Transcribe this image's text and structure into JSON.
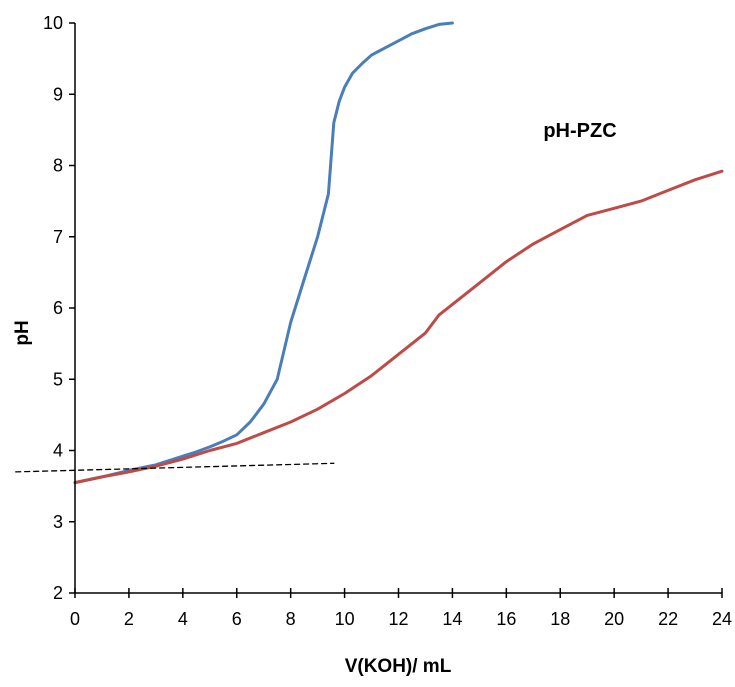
{
  "chart_data": {
    "type": "line",
    "title": "",
    "xlabel": "V(KOH)/ mL",
    "ylabel": "pH",
    "xlim": [
      0,
      24
    ],
    "ylim": [
      2,
      10
    ],
    "xticks": [
      0,
      2,
      4,
      6,
      8,
      10,
      12,
      14,
      16,
      18,
      20,
      22,
      24
    ],
    "yticks": [
      2,
      3,
      4,
      5,
      6,
      7,
      8,
      9,
      10
    ],
    "grid": false,
    "legend": "none",
    "annotation": "pH-PZC",
    "series": [
      {
        "color": "#4a7ebb",
        "x": [
          0,
          1,
          2,
          3,
          4,
          4.5,
          5,
          5.5,
          6,
          6.5,
          7,
          7.5,
          8,
          8.5,
          9,
          9.4,
          9.6,
          9.8,
          10,
          10.3,
          10.7,
          11,
          11.5,
          12,
          12.5,
          13,
          13.5,
          14
        ],
        "y": [
          3.55,
          3.63,
          3.72,
          3.8,
          3.92,
          3.98,
          4.05,
          4.13,
          4.22,
          4.4,
          4.65,
          5.0,
          5.8,
          6.4,
          7.0,
          7.6,
          8.6,
          8.9,
          9.1,
          9.3,
          9.45,
          9.55,
          9.65,
          9.75,
          9.85,
          9.92,
          9.98,
          10.0
        ]
      },
      {
        "color": "#be4b48",
        "x": [
          0,
          1,
          2,
          3,
          4,
          5,
          6,
          7,
          8,
          9,
          10,
          11,
          12,
          13,
          13.5,
          14,
          15,
          16,
          17,
          18,
          19,
          20,
          21,
          22,
          23,
          24
        ],
        "y": [
          3.55,
          3.63,
          3.7,
          3.78,
          3.88,
          4.0,
          4.1,
          4.25,
          4.4,
          4.58,
          4.8,
          5.05,
          5.35,
          5.65,
          5.9,
          6.05,
          6.35,
          6.65,
          6.9,
          7.1,
          7.3,
          7.4,
          7.5,
          7.65,
          7.8,
          7.92
        ]
      },
      {
        "color": "#000000",
        "dashed": true,
        "x": [
          -2.2,
          9.6
        ],
        "y": [
          3.7,
          3.82
        ]
      }
    ]
  }
}
